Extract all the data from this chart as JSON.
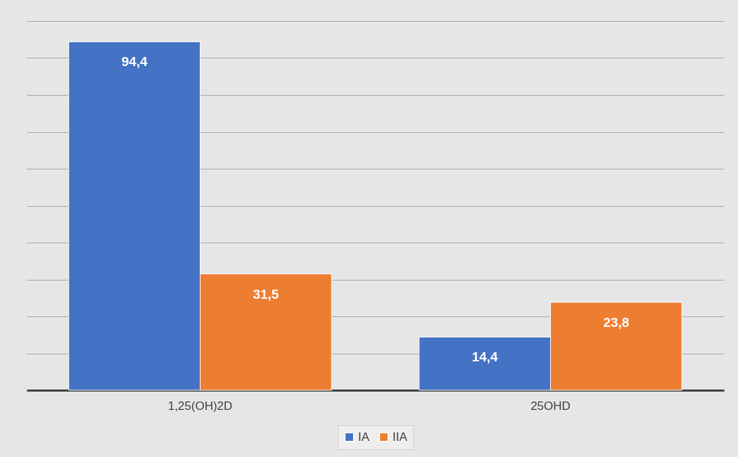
{
  "chart_data": {
    "type": "bar",
    "categories": [
      "1,25(OH)2D",
      "25OHD"
    ],
    "series": [
      {
        "name": "IA",
        "color": "#4472c4",
        "values": [
          94.4,
          14.4
        ],
        "value_labels": [
          "94,4",
          "14,4"
        ]
      },
      {
        "name": "IIA",
        "color": "#ed7d31",
        "values": [
          31.5,
          23.8
        ],
        "value_labels": [
          "31,5",
          "23,8"
        ]
      }
    ],
    "grid": "y",
    "legend": "bottom",
    "tick_labels": "x"
  }
}
